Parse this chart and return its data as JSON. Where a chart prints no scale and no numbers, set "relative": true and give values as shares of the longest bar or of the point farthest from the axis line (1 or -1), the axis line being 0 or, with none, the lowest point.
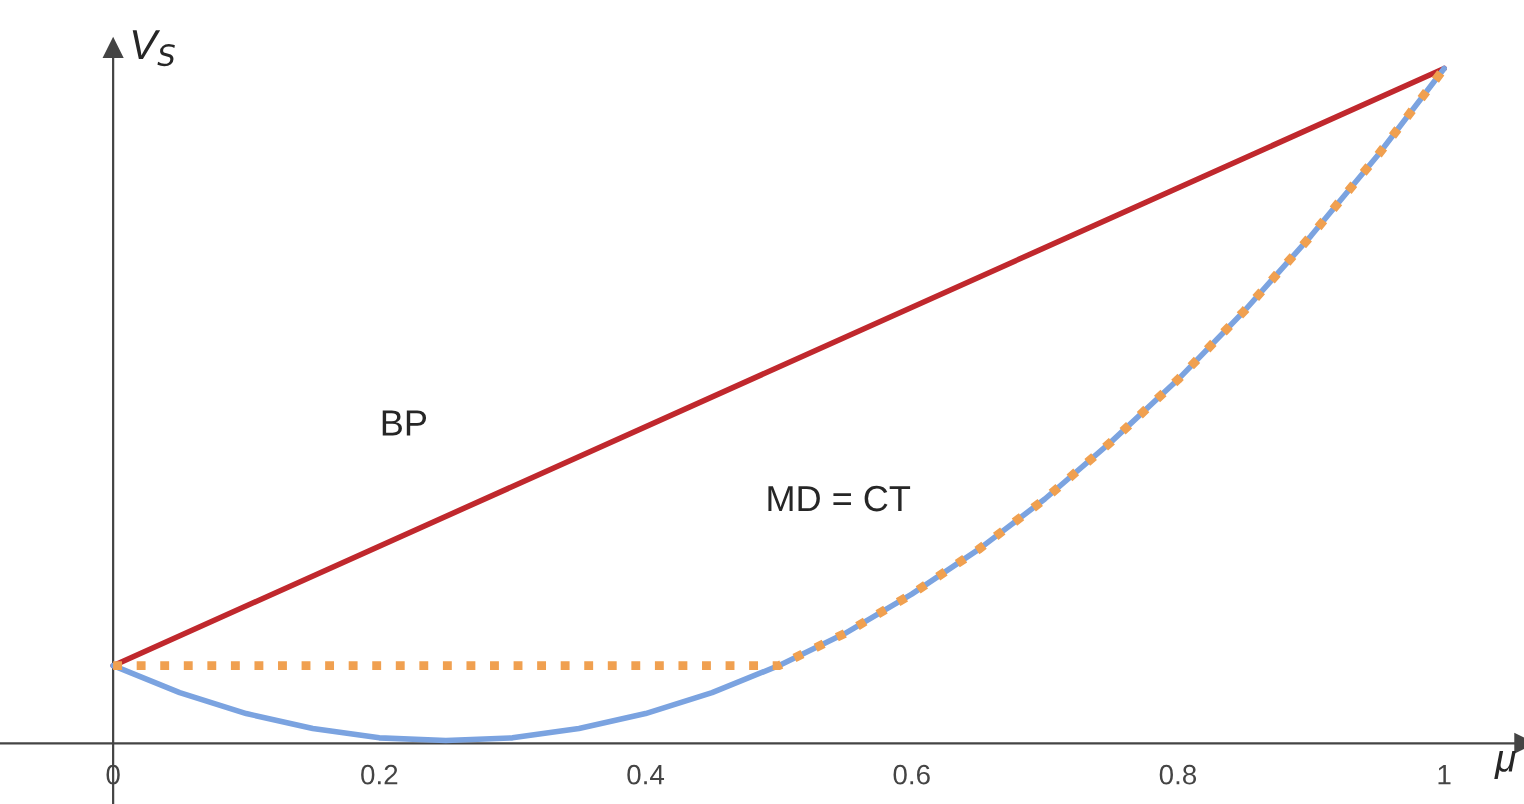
{
  "chart_data": {
    "type": "line",
    "relative": true,
    "xlabel": "μ",
    "ylabel": "V$_{S}$",
    "xlim": [
      -0.085,
      1.06
    ],
    "xticks": [
      0,
      0.2,
      0.4,
      0.6,
      0.8,
      1
    ],
    "tick_labels": "x",
    "legend": false,
    "series": [
      {
        "color": "#c0282d",
        "x": [
          0,
          1
        ],
        "values": [
          0.115,
          1
        ],
        "line_style": "solid"
      },
      {
        "color": "#7ba3e0",
        "x": [
          0,
          0.05,
          0.1,
          0.15,
          0.2,
          0.25,
          0.3,
          0.35,
          0.4,
          0.45,
          0.5,
          0.55,
          0.6,
          0.65,
          0.7,
          0.75,
          0.8,
          0.85,
          0.9,
          0.95,
          1
        ],
        "values": [
          0.115,
          0.075,
          0.044,
          0.022,
          0.008,
          0.004,
          0.008,
          0.022,
          0.044,
          0.075,
          0.115,
          0.163,
          0.221,
          0.287,
          0.362,
          0.447,
          0.539,
          0.641,
          0.752,
          0.871,
          1
        ],
        "line_style": "solid"
      },
      {
        "color": "#f0a050",
        "x": [
          0,
          0.5,
          0.55,
          0.6,
          0.65,
          0.7,
          0.75,
          0.8,
          0.85,
          0.9,
          0.95,
          1
        ],
        "values": [
          0.115,
          0.115,
          0.163,
          0.221,
          0.287,
          0.362,
          0.447,
          0.539,
          0.641,
          0.752,
          0.871,
          1
        ],
        "line_style": "dotted"
      }
    ],
    "annotations": [
      "BP",
      "MD = CT"
    ]
  }
}
